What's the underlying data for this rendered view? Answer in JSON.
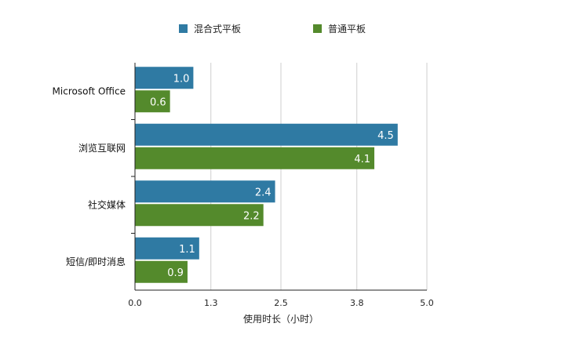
{
  "chart_data": {
    "type": "bar",
    "orientation": "horizontal",
    "categories": [
      "Microsoft Office",
      "浏览互联网",
      "社交媒体",
      "短信/即时消息"
    ],
    "series": [
      {
        "name": "混合式平板",
        "values": [
          1.0,
          4.5,
          2.4,
          1.1
        ],
        "color": "#2f7aa3"
      },
      {
        "name": "普通平板",
        "values": [
          0.6,
          4.1,
          2.2,
          0.9
        ],
        "color": "#548a2c"
      }
    ],
    "title": "",
    "xlabel": "使用时长（小时）",
    "ylabel": "",
    "xlim": [
      0,
      5.0
    ],
    "xticks": [
      "0.0",
      "1.3",
      "2.5",
      "3.8",
      "5.0"
    ],
    "grid": true,
    "legend_position": "top"
  }
}
